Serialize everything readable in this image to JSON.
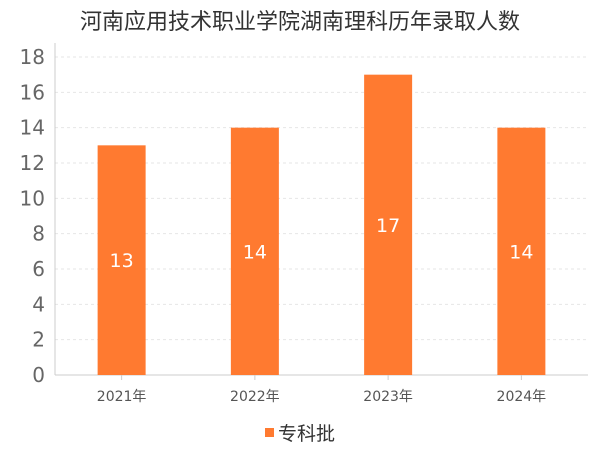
{
  "chart_data": {
    "type": "bar",
    "title": "河南应用技术职业学院湖南理科历年录取人数",
    "categories": [
      "2021年",
      "2022年",
      "2023年",
      "2024年"
    ],
    "series": [
      {
        "name": "专科批",
        "values": [
          13,
          14,
          17,
          14
        ],
        "color": "#FF7A30"
      }
    ],
    "ylim": [
      0,
      18
    ],
    "yticks": [
      0,
      2,
      4,
      6,
      8,
      10,
      12,
      14,
      16,
      18
    ],
    "xlabel": "",
    "ylabel": "",
    "grid": true,
    "legend_position": "bottom"
  }
}
